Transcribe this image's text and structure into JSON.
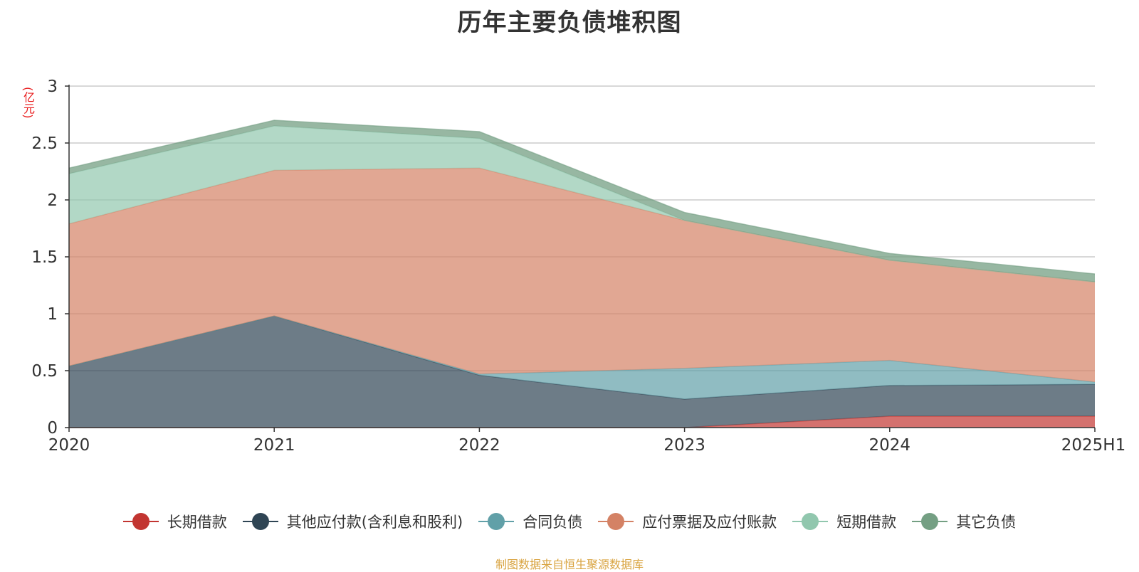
{
  "chart_data": {
    "type": "area",
    "stacked": true,
    "title": "历年主要负债堆积图",
    "unit_label": "(亿元)",
    "categories": [
      "2020",
      "2021",
      "2022",
      "2023",
      "2024",
      "2025H1"
    ],
    "ylim": [
      0,
      3
    ],
    "yticks": [
      "0",
      "0.5",
      "1",
      "1.5",
      "2",
      "2.5",
      "3"
    ],
    "grid": true,
    "legend_position": "bottom",
    "series": [
      {
        "name": "长期借款",
        "color": "#c23531",
        "values": [
          0.0,
          0.0,
          0.0,
          0.0,
          0.1,
          0.1
        ]
      },
      {
        "name": "其他应付款(含利息和股利)",
        "color": "#2f4554",
        "values": [
          0.54,
          0.98,
          0.46,
          0.25,
          0.27,
          0.28
        ]
      },
      {
        "name": "合同负债",
        "color": "#61a0a8",
        "values": [
          0.0,
          0.0,
          0.01,
          0.27,
          0.22,
          0.02
        ]
      },
      {
        "name": "应付票据及应付账款",
        "color": "#d48265",
        "values": [
          1.25,
          1.28,
          1.81,
          1.3,
          0.88,
          0.88
        ]
      },
      {
        "name": "短期借款",
        "color": "#91c7ae",
        "values": [
          0.44,
          0.39,
          0.26,
          0.0,
          0.0,
          0.0
        ]
      },
      {
        "name": "其它负债",
        "color": "#749f83",
        "values": [
          0.05,
          0.05,
          0.06,
          0.07,
          0.06,
          0.07
        ]
      }
    ],
    "source": "制图数据来自恒生聚源数据库"
  }
}
